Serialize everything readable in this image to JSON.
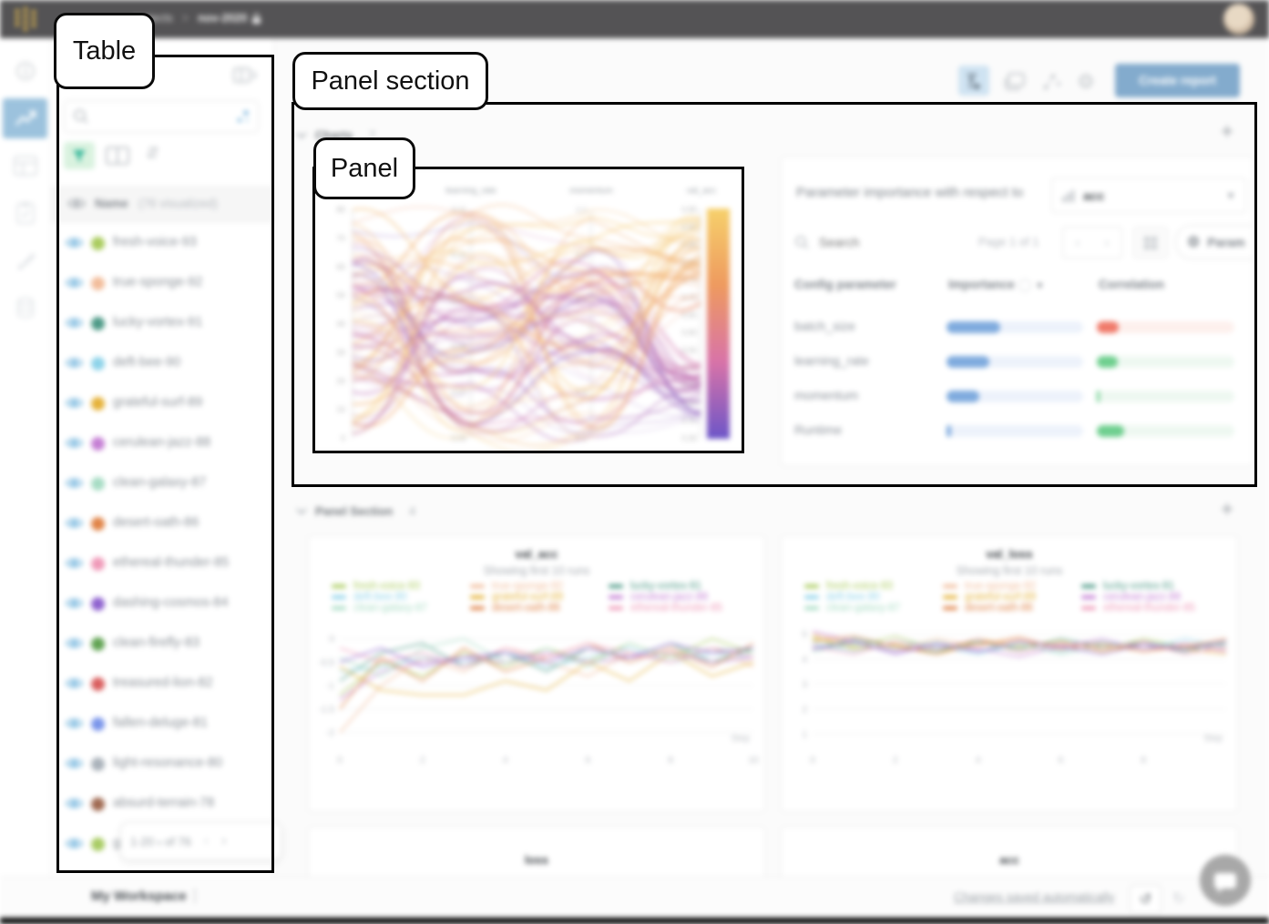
{
  "annotations": {
    "table": "Table",
    "panel_section": "Panel section",
    "panel": "Panel"
  },
  "topbar": {
    "breadcrumb_project": "projects",
    "breadcrumb_separator": ">",
    "breadcrumb_run": "nov-2020",
    "icons": [
      "wandb-logo",
      "lock-icon",
      "user-avatar"
    ]
  },
  "leftnav": {
    "icons": [
      "info-icon",
      "line-chart-icon",
      "table-icon",
      "clipboard-icon",
      "brush-icon",
      "database-icon"
    ],
    "active": "line-chart-icon"
  },
  "sidebar": {
    "icons": [
      "collapse-panel-icon",
      "search-icon",
      "search-options-icon",
      "filter-icon",
      "columns-icon",
      "sort-icon"
    ],
    "search_placeholder": "",
    "runs_header": {
      "name": "Name",
      "visualized": "(76 visualized)"
    },
    "runs": [
      {
        "name": "fresh-voice-93",
        "color": "#aacc5e"
      },
      {
        "name": "true-sponge-92",
        "color": "#f2bd9b"
      },
      {
        "name": "lucky-vortex-91",
        "color": "#4e9a87"
      },
      {
        "name": "deft-bee-90",
        "color": "#8ed3e9"
      },
      {
        "name": "grateful-surf-89",
        "color": "#e5b23a"
      },
      {
        "name": "cerulean-jazz-88",
        "color": "#c57fd4"
      },
      {
        "name": "clean-galaxy-87",
        "color": "#a7dcc4"
      },
      {
        "name": "desert-oath-86",
        "color": "#e08448"
      },
      {
        "name": "ethereal-thunder-85",
        "color": "#ef9ab9"
      },
      {
        "name": "dashing-cosmos-84",
        "color": "#8f63cf"
      },
      {
        "name": "clean-firefly-83",
        "color": "#61a353"
      },
      {
        "name": "treasured-lion-82",
        "color": "#d95f5f"
      },
      {
        "name": "fallen-deluge-81",
        "color": "#7b96ea"
      },
      {
        "name": "light-resonance-80",
        "color": "#aab2ba"
      },
      {
        "name": "absurd-terrain-78",
        "color": "#a06a52"
      },
      {
        "name": "g",
        "color": "#a9cc64"
      }
    ],
    "pagination": {
      "range": "1-20",
      "of": "of 76"
    }
  },
  "toolbar": {
    "icons": [
      "sweep-icon",
      "layers-icon",
      "scatter-plot-icon",
      "gear-icon"
    ],
    "create_report": "Create report"
  },
  "sections": [
    {
      "title": "Charts",
      "count": "7"
    },
    {
      "title": "Panel Section",
      "count": "4"
    }
  ],
  "importance": {
    "title": "Parameter importance with respect to",
    "metric": "acc",
    "search_placeholder": "Search",
    "page": "Page 1 of 1",
    "param_button": "Param",
    "columns": [
      "Config parameter",
      "Importance",
      "Correlation"
    ],
    "importance_color": "#7fabde",
    "rows": [
      {
        "param": "batch_size",
        "importance": 0.39,
        "correlation": 0.16,
        "sign": "negative"
      },
      {
        "param": "learning_rate",
        "importance": 0.31,
        "correlation": 0.15,
        "sign": "positive"
      },
      {
        "param": "momentum",
        "importance": 0.24,
        "correlation": 0.02,
        "sign": "positive"
      },
      {
        "param": "Runtime",
        "importance": 0.03,
        "correlation": 0.2,
        "sign": "positive"
      }
    ],
    "positive_color": "#6fcf8f",
    "negative_color": "#f07a6a"
  },
  "footer": {
    "workspace": "My Workspace",
    "saved": "Changes saved automatically"
  },
  "chart_data": [
    {
      "type": "parallel_coordinates",
      "axes": [
        {
          "label": "",
          "ticks": [
            "80",
            "70",
            "60",
            "50",
            "40",
            "30",
            "20",
            "10",
            "0"
          ]
        },
        {
          "label": "learning_rate",
          "ticks": [
            "0.11",
            "0.10",
            "0.09",
            "0.08",
            "0.07",
            "0.06"
          ]
        },
        {
          "label": "momentum",
          "ticks": [
            "1.1",
            "0.9",
            "0.7",
            "0.5",
            "0.3",
            "0.1"
          ]
        },
        {
          "label": "val_acc",
          "ticks": [
            "0.95",
            "0.90",
            "0.85",
            "0.80",
            "0.75",
            "0.70",
            "0.65",
            "0.60",
            "0.55",
            "0.50",
            "0.45",
            "0.40",
            "0.35",
            "0.30"
          ]
        }
      ],
      "num_lines": 76,
      "gradient": [
        "#f6d06b",
        "#ee9a5f",
        "#d873a8",
        "#6c55c8"
      ],
      "seed": 42
    },
    {
      "type": "line",
      "title": "val_acc",
      "subtitle": "Showing first 10 runs",
      "x_ticks": [
        0,
        2,
        4,
        6,
        8,
        10
      ],
      "xlim": [
        0,
        10
      ],
      "xlabel": "Step",
      "y_ticks": [
        0,
        -0.5,
        -1,
        -1.5,
        -2
      ],
      "ylim": [
        -2.3,
        0.42
      ],
      "series": [
        {
          "name": "fresh-voice-93",
          "color": "#aacc5e",
          "values": [
            -1.2,
            -0.5,
            -0.8,
            -0.3,
            -0.6,
            -0.2,
            -0.5,
            -0.1,
            -0.4,
            0.0,
            -0.3
          ]
        },
        {
          "name": "true-sponge-92",
          "color": "#f2bd9b",
          "values": [
            -2.0,
            -1.0,
            -0.4,
            -0.7,
            -0.2,
            -0.5,
            -0.8,
            -0.3,
            -0.5,
            -0.2,
            -0.6
          ]
        },
        {
          "name": "lucky-vortex-91",
          "color": "#4e9a87",
          "values": [
            -0.9,
            -0.3,
            -0.1,
            -0.6,
            -0.3,
            -0.7,
            -0.2,
            -0.4,
            -0.1,
            -0.5,
            -0.2
          ]
        },
        {
          "name": "deft-bee-90",
          "color": "#8ed3e9",
          "values": [
            -0.7,
            -0.6,
            -0.4,
            -0.5,
            -0.3,
            -0.6,
            -0.4,
            -0.2,
            -0.5,
            -0.3,
            -0.4
          ]
        },
        {
          "name": "grateful-surf-89",
          "color": "#e5b23a",
          "values": [
            -0.6,
            -1.1,
            -1.2,
            -1.2,
            -0.9,
            -1.1,
            -0.5,
            -0.9,
            -0.3,
            -0.8,
            -0.5
          ]
        },
        {
          "name": "cerulean-jazz-88",
          "color": "#c57fd4",
          "values": [
            -1.3,
            -0.7,
            -0.5,
            -0.4,
            -0.5,
            -0.3,
            -0.5,
            -0.4,
            -0.3,
            -0.5,
            -0.4
          ]
        },
        {
          "name": "clean-galaxy-87",
          "color": "#a7dcc4",
          "values": [
            -0.4,
            -0.8,
            -0.2,
            0.0,
            -0.5,
            -0.2,
            -0.6,
            -0.1,
            -0.4,
            -0.2,
            -0.3
          ]
        },
        {
          "name": "desert-oath-86",
          "color": "#e08448",
          "values": [
            -1.5,
            -0.4,
            -0.9,
            -0.2,
            -0.7,
            -0.4,
            -0.1,
            -0.5,
            -0.2,
            -0.6,
            -0.1
          ]
        },
        {
          "name": "ethereal-thunder-85",
          "color": "#ef9ab9",
          "values": [
            -0.2,
            -0.5,
            -0.3,
            -0.6,
            -0.2,
            -0.4,
            -0.1,
            -0.3,
            -0.5,
            -0.2,
            -0.4
          ]
        },
        {
          "name": "dashing-cosmos-84",
          "color": "#8f63cf",
          "values": [
            -0.5,
            -0.2,
            -0.6,
            -0.4,
            -0.3,
            -0.5,
            -0.2,
            -0.4,
            -0.1,
            -0.3,
            -0.2
          ]
        }
      ],
      "legend_visible": 9,
      "grid": true,
      "legend_position": "top"
    },
    {
      "type": "line",
      "title": "val_loss",
      "subtitle": "Showing first 10 runs",
      "x_ticks": [
        0,
        2,
        4,
        6,
        8
      ],
      "xlim": [
        0,
        10
      ],
      "xlabel": "Step",
      "y_ticks": [
        5,
        4,
        3,
        2,
        1
      ],
      "ylim": [
        0.5,
        5.6
      ],
      "series": [
        {
          "name": "fresh-voice-93",
          "color": "#aacc5e",
          "values": [
            4.8,
            4.5,
            4.9,
            4.4,
            4.7,
            4.3,
            4.6,
            4.4,
            4.8,
            4.5,
            4.6
          ]
        },
        {
          "name": "true-sponge-92",
          "color": "#f2bd9b",
          "values": [
            5.0,
            4.6,
            4.4,
            4.8,
            4.5,
            4.9,
            4.4,
            4.7,
            4.3,
            4.6,
            4.4
          ]
        },
        {
          "name": "lucky-vortex-91",
          "color": "#4e9a87",
          "values": [
            4.4,
            4.8,
            4.5,
            4.3,
            4.7,
            4.4,
            4.8,
            4.5,
            4.6,
            4.3,
            4.7
          ]
        },
        {
          "name": "deft-bee-90",
          "color": "#8ed3e9",
          "values": [
            4.6,
            4.3,
            4.7,
            4.5,
            4.2,
            4.6,
            4.3,
            4.7,
            4.4,
            4.8,
            4.5
          ]
        },
        {
          "name": "grateful-surf-89",
          "color": "#e5b23a",
          "values": [
            4.9,
            4.4,
            4.6,
            4.2,
            4.8,
            4.5,
            4.7,
            4.3,
            4.6,
            4.4,
            4.2
          ]
        },
        {
          "name": "cerulean-jazz-88",
          "color": "#c57fd4",
          "values": [
            5.1,
            4.7,
            4.3,
            4.6,
            4.4,
            4.1,
            4.5,
            4.8,
            4.4,
            4.6,
            4.3
          ]
        },
        {
          "name": "clean-galaxy-87",
          "color": "#a7dcc4",
          "values": [
            4.3,
            4.6,
            4.4,
            4.7,
            4.3,
            4.6,
            4.2,
            4.5,
            4.7,
            4.4,
            4.6
          ]
        },
        {
          "name": "desert-oath-86",
          "color": "#e08448",
          "values": [
            4.7,
            4.9,
            4.5,
            4.2,
            4.6,
            4.8,
            4.4,
            4.6,
            4.3,
            4.5,
            4.8
          ]
        },
        {
          "name": "ethereal-thunder-85",
          "color": "#ef9ab9",
          "values": [
            4.5,
            4.2,
            4.7,
            4.4,
            4.8,
            4.3,
            4.6,
            4.4,
            4.7,
            4.2,
            4.5
          ]
        },
        {
          "name": "dashing-cosmos-84",
          "color": "#8f63cf",
          "values": [
            4.4,
            4.7,
            4.2,
            4.6,
            4.3,
            4.7,
            4.5,
            4.2,
            4.6,
            4.4,
            4.7
          ]
        }
      ],
      "legend_visible": 9,
      "grid": true,
      "legend_position": "top"
    },
    {
      "type": "line",
      "title": "loss"
    },
    {
      "type": "line",
      "title": "acc"
    }
  ]
}
